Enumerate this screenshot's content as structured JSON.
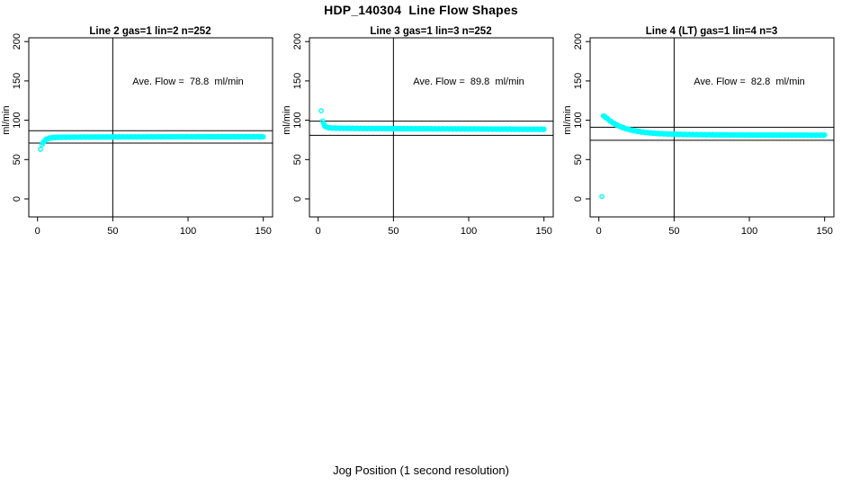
{
  "page": {
    "title": "HDP_140304  Line Flow Shapes",
    "xlabel": "Jog Position (1 second resolution)",
    "background": "#ffffff",
    "line_color": "#000000",
    "point_color": "#00ffff"
  },
  "chart_data": [
    {
      "type": "scatter",
      "title": "Line 2 gas=1 lin=2 n=252",
      "annotation": "Ave. Flow =  78.8  ml/min",
      "ave_flow_ml_min": 78.8,
      "n": 252,
      "ylabel": "ml/min",
      "x_ticks": [
        0,
        50,
        100,
        150
      ],
      "y_ticks": [
        0,
        50,
        100,
        150,
        200
      ],
      "xlim": [
        -6,
        156
      ],
      "ylim": [
        -23,
        205
      ],
      "grid": false,
      "vline_x": 50,
      "ref_line_upper": 86.7,
      "ref_line_lower": 70.9,
      "point_color": "#00ffff",
      "isolated_points": [
        [
          2,
          63
        ]
      ],
      "curve_points": [
        [
          3,
          69
        ],
        [
          4,
          72.5
        ],
        [
          5,
          74.5
        ],
        [
          6,
          76
        ],
        [
          8,
          77.3
        ],
        [
          10,
          78
        ],
        [
          15,
          78.4
        ],
        [
          30,
          78.6
        ],
        [
          60,
          78.8
        ],
        [
          100,
          78.9
        ],
        [
          150,
          79
        ]
      ]
    },
    {
      "type": "scatter",
      "title": "Line 3 gas=1 lin=3 n=252",
      "annotation": "Ave. Flow =  89.8  ml/min",
      "ave_flow_ml_min": 89.8,
      "n": 252,
      "ylabel": "ml/min",
      "x_ticks": [
        0,
        50,
        100,
        150
      ],
      "y_ticks": [
        0,
        50,
        100,
        150,
        200
      ],
      "xlim": [
        -6,
        156
      ],
      "ylim": [
        -23,
        205
      ],
      "grid": false,
      "vline_x": 50,
      "ref_line_upper": 98.8,
      "ref_line_lower": 80.8,
      "point_color": "#00ffff",
      "isolated_points": [
        [
          2,
          112
        ]
      ],
      "curve_points": [
        [
          3,
          99
        ],
        [
          4,
          93.5
        ],
        [
          5,
          91.8
        ],
        [
          6,
          90.8
        ],
        [
          8,
          90.2
        ],
        [
          12,
          89.9
        ],
        [
          20,
          89.7
        ],
        [
          40,
          89.4
        ],
        [
          80,
          89
        ],
        [
          120,
          88.7
        ],
        [
          150,
          88.5
        ]
      ]
    },
    {
      "type": "scatter",
      "title": "Line 4 (LT) gas=1 lin=4 n=3",
      "annotation": "Ave. Flow =  82.8  ml/min",
      "ave_flow_ml_min": 82.8,
      "n": 3,
      "ylabel": "ml/min",
      "x_ticks": [
        0,
        50,
        100,
        150
      ],
      "y_ticks": [
        0,
        50,
        100,
        150,
        200
      ],
      "xlim": [
        -6,
        156
      ],
      "ylim": [
        -23,
        205
      ],
      "grid": false,
      "vline_x": 50,
      "ref_line_upper": 91.1,
      "ref_line_lower": 74.5,
      "point_color": "#00ffff",
      "isolated_points": [
        [
          2,
          3
        ]
      ],
      "curve_points": [
        [
          3,
          105.5
        ],
        [
          4,
          104.5
        ],
        [
          5,
          103
        ],
        [
          6,
          101.5
        ],
        [
          8,
          98.5
        ],
        [
          10,
          96
        ],
        [
          12,
          94
        ],
        [
          15,
          91.3
        ],
        [
          18,
          89.3
        ],
        [
          22,
          87.3
        ],
        [
          26,
          85.8
        ],
        [
          30,
          84.7
        ],
        [
          35,
          83.7
        ],
        [
          40,
          83
        ],
        [
          50,
          82.2
        ],
        [
          60,
          81.8
        ],
        [
          80,
          81.4
        ],
        [
          100,
          81.2
        ],
        [
          120,
          81.1
        ],
        [
          150,
          81
        ]
      ]
    }
  ]
}
